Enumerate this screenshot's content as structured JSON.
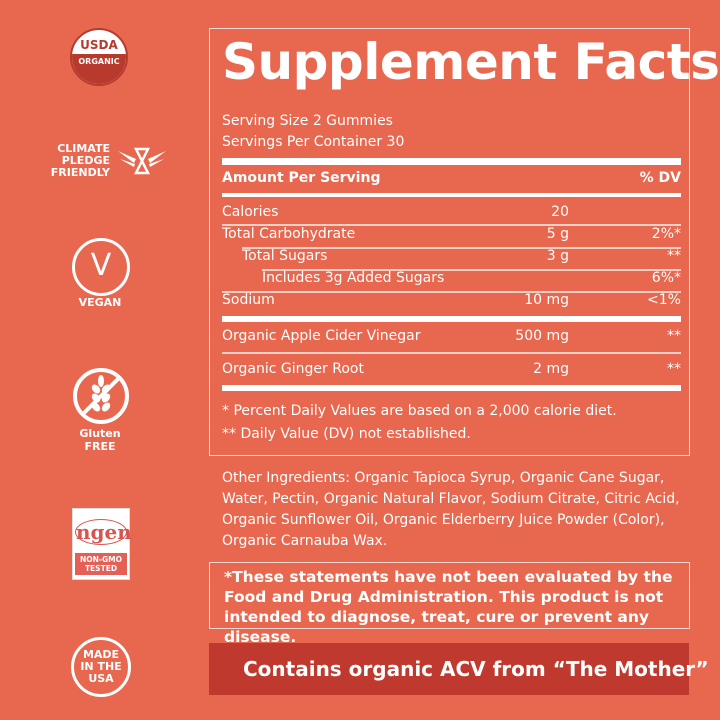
{
  "badges": {
    "usda": [
      "USDA",
      "ORGANIC"
    ],
    "climate": [
      "CLIMATE",
      "PLEDGE",
      "FRIENDLY"
    ],
    "vegan": {
      "glyph": "V",
      "label": "VEGAN"
    },
    "gluten": [
      "Gluten",
      "FREE"
    ],
    "nongmo": {
      "logo": "ngen",
      "label": [
        "NON-GMO",
        "TESTED"
      ]
    },
    "usa": [
      "MADE",
      "IN THE",
      "USA"
    ]
  },
  "facts": {
    "title": "Supplement Facts",
    "serving_size": "Serving Size 2 Gummies",
    "servings_per_container": "Servings Per Container 30",
    "header": {
      "amount": "Amount Per Serving",
      "dv": "% DV"
    },
    "rows": [
      {
        "label": "Calories",
        "amount": "20",
        "dv": ""
      },
      {
        "label": "Total Carbohydrate",
        "amount": "5 g",
        "dv": "2%*"
      },
      {
        "label": "Total Sugars",
        "amount": "3 g",
        "dv": "**"
      },
      {
        "label": "Includes 3g Added Sugars",
        "amount": "",
        "dv": "6%*"
      },
      {
        "label": "Sodium",
        "amount": "10 mg",
        "dv": "<1%"
      },
      {
        "label": "Organic Apple Cider Vinegar",
        "amount": "500 mg",
        "dv": "**"
      },
      {
        "label": "Organic Ginger Root",
        "amount": "2 mg",
        "dv": "**"
      }
    ],
    "footnotes": [
      "*   Percent Daily Values are based on a 2,000 calorie diet.",
      "** Daily Value (DV) not established."
    ]
  },
  "other_ingredients": "Other Ingredients: Organic Tapioca Syrup, Organic Cane Sugar, Water, Pectin, Organic Natural Flavor, Sodium Citrate, Citric Acid, Organic Sunflower Oil, Organic Elderberry Juice Powder (Color), Organic Carnauba Wax.",
  "disclaimer": "*These statements have not been evaluated by the Food and Drug Administration. This product is not intended to diagnose, treat, cure or prevent any disease.",
  "banner": {
    "text": "Contains organic ACV from “The Mother”",
    "icon": "apple-heart-icon"
  },
  "colors": {
    "background": "#E8674F",
    "banner": "#C0392F",
    "usda_red": "#B83A2C"
  }
}
